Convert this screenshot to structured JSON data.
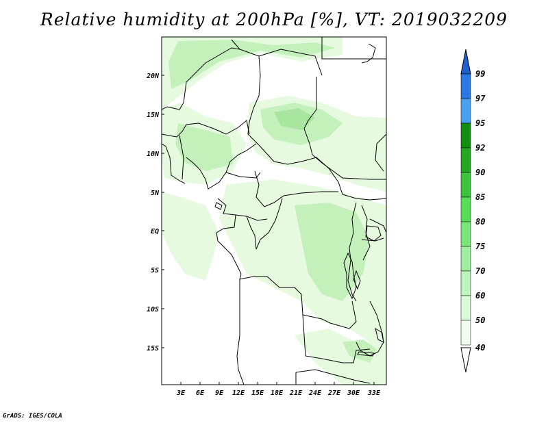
{
  "title": "Relative humidity at 200hPa [%], VT: 2019032209",
  "credit": "GrADS: IGES/COLA",
  "map": {
    "lat_labels": [
      "20N",
      "15N",
      "10N",
      "5N",
      "EQ",
      "5S",
      "10S",
      "15S"
    ],
    "lon_labels": [
      "3E",
      "6E",
      "9E",
      "12E",
      "15E",
      "18E",
      "21E",
      "24E",
      "27E",
      "30E",
      "33E"
    ],
    "shade_colors": {
      "rh40": "#e6fae0",
      "rh50": "#c4f0bc",
      "rh60": "#a8e6a0"
    }
  },
  "colorbar": {
    "levels": [
      "99",
      "97",
      "95",
      "92",
      "90",
      "85",
      "80",
      "75",
      "70",
      "60",
      "50",
      "40"
    ],
    "colors": [
      "#1f5fd0",
      "#2a78e4",
      "#4aa0f0",
      "#118e11",
      "#24a824",
      "#3cc43c",
      "#57dd57",
      "#7ae67a",
      "#9fef9f",
      "#bdf5bd",
      "#d8fbd8",
      "#effdef",
      "#ffffff"
    ]
  }
}
